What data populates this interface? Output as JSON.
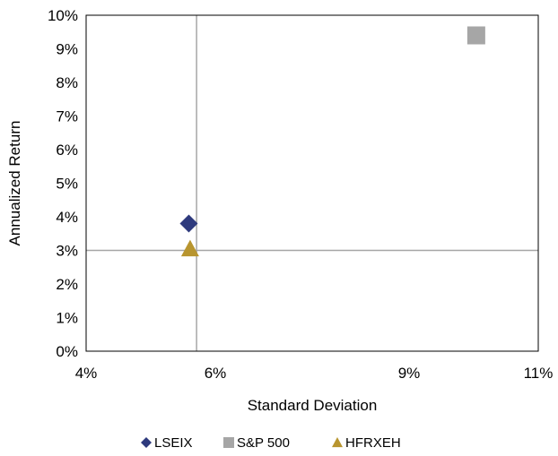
{
  "chart_data": {
    "type": "scatter",
    "xlabel": "Standard Deviation",
    "ylabel": "Annualized  Return",
    "xlim": [
      0.04,
      0.11
    ],
    "ylim": [
      0,
      0.1
    ],
    "x_ticks": [
      0.04,
      0.06,
      0.09,
      0.11
    ],
    "x_tick_labels": [
      "4%",
      "6%",
      "9%",
      "11%"
    ],
    "y_ticks": [
      0,
      0.01,
      0.02,
      0.03,
      0.04,
      0.05,
      0.06,
      0.07,
      0.08,
      0.09,
      0.1
    ],
    "y_tick_labels": [
      "0%",
      "1%",
      "2%",
      "3%",
      "4%",
      "5%",
      "6%",
      "7%",
      "8%",
      "9%",
      "10%"
    ],
    "reference_lines": {
      "x": 0.0571,
      "y": 0.03
    },
    "legend_position": "bottom",
    "series": [
      {
        "name": "LSEIX",
        "marker": "diamond",
        "color": "#2e3a7d",
        "x": 0.0559,
        "y": 0.038
      },
      {
        "name": "S&P 500",
        "marker": "square",
        "color": "#a6a6a6",
        "x": 0.1004,
        "y": 0.094
      },
      {
        "name": "HFRXEH",
        "marker": "triangle",
        "color": "#b8952f",
        "x": 0.0561,
        "y": 0.0305
      }
    ]
  }
}
